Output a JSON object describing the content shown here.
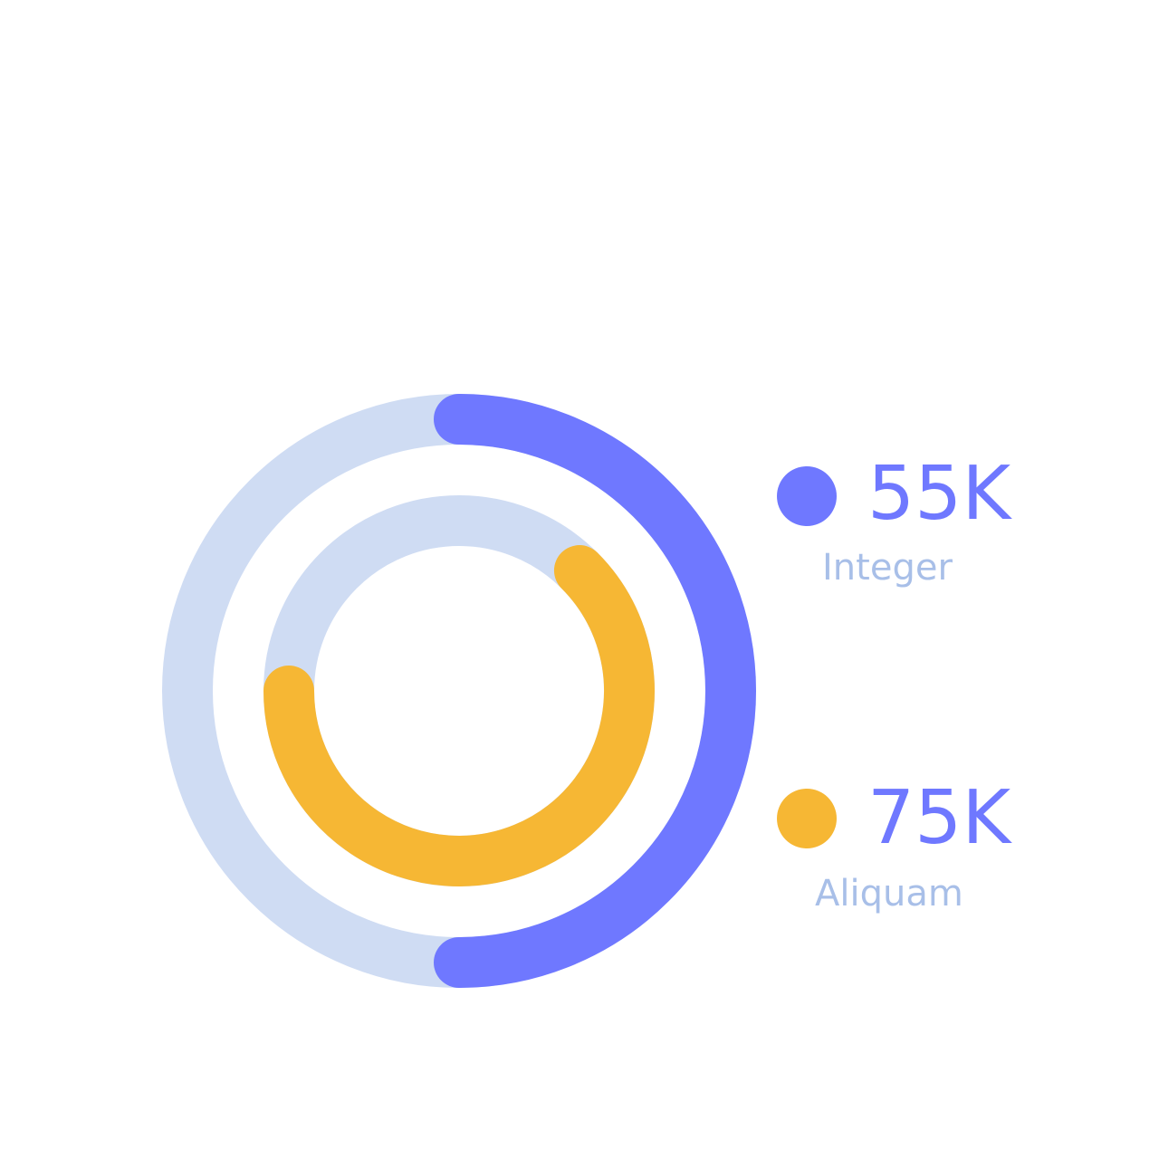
{
  "chart_data": {
    "type": "radial-progress",
    "series": [
      {
        "name": "Integer",
        "value": "55K",
        "fraction": 0.5,
        "color": "#6f78ff"
      },
      {
        "name": "Aliquam",
        "value": "75K",
        "fraction": 0.625,
        "color": "#f6b734"
      }
    ],
    "track_color": "#cfdcf3",
    "label_color": "#a8bfe8",
    "value_color": "#6f78ff"
  }
}
